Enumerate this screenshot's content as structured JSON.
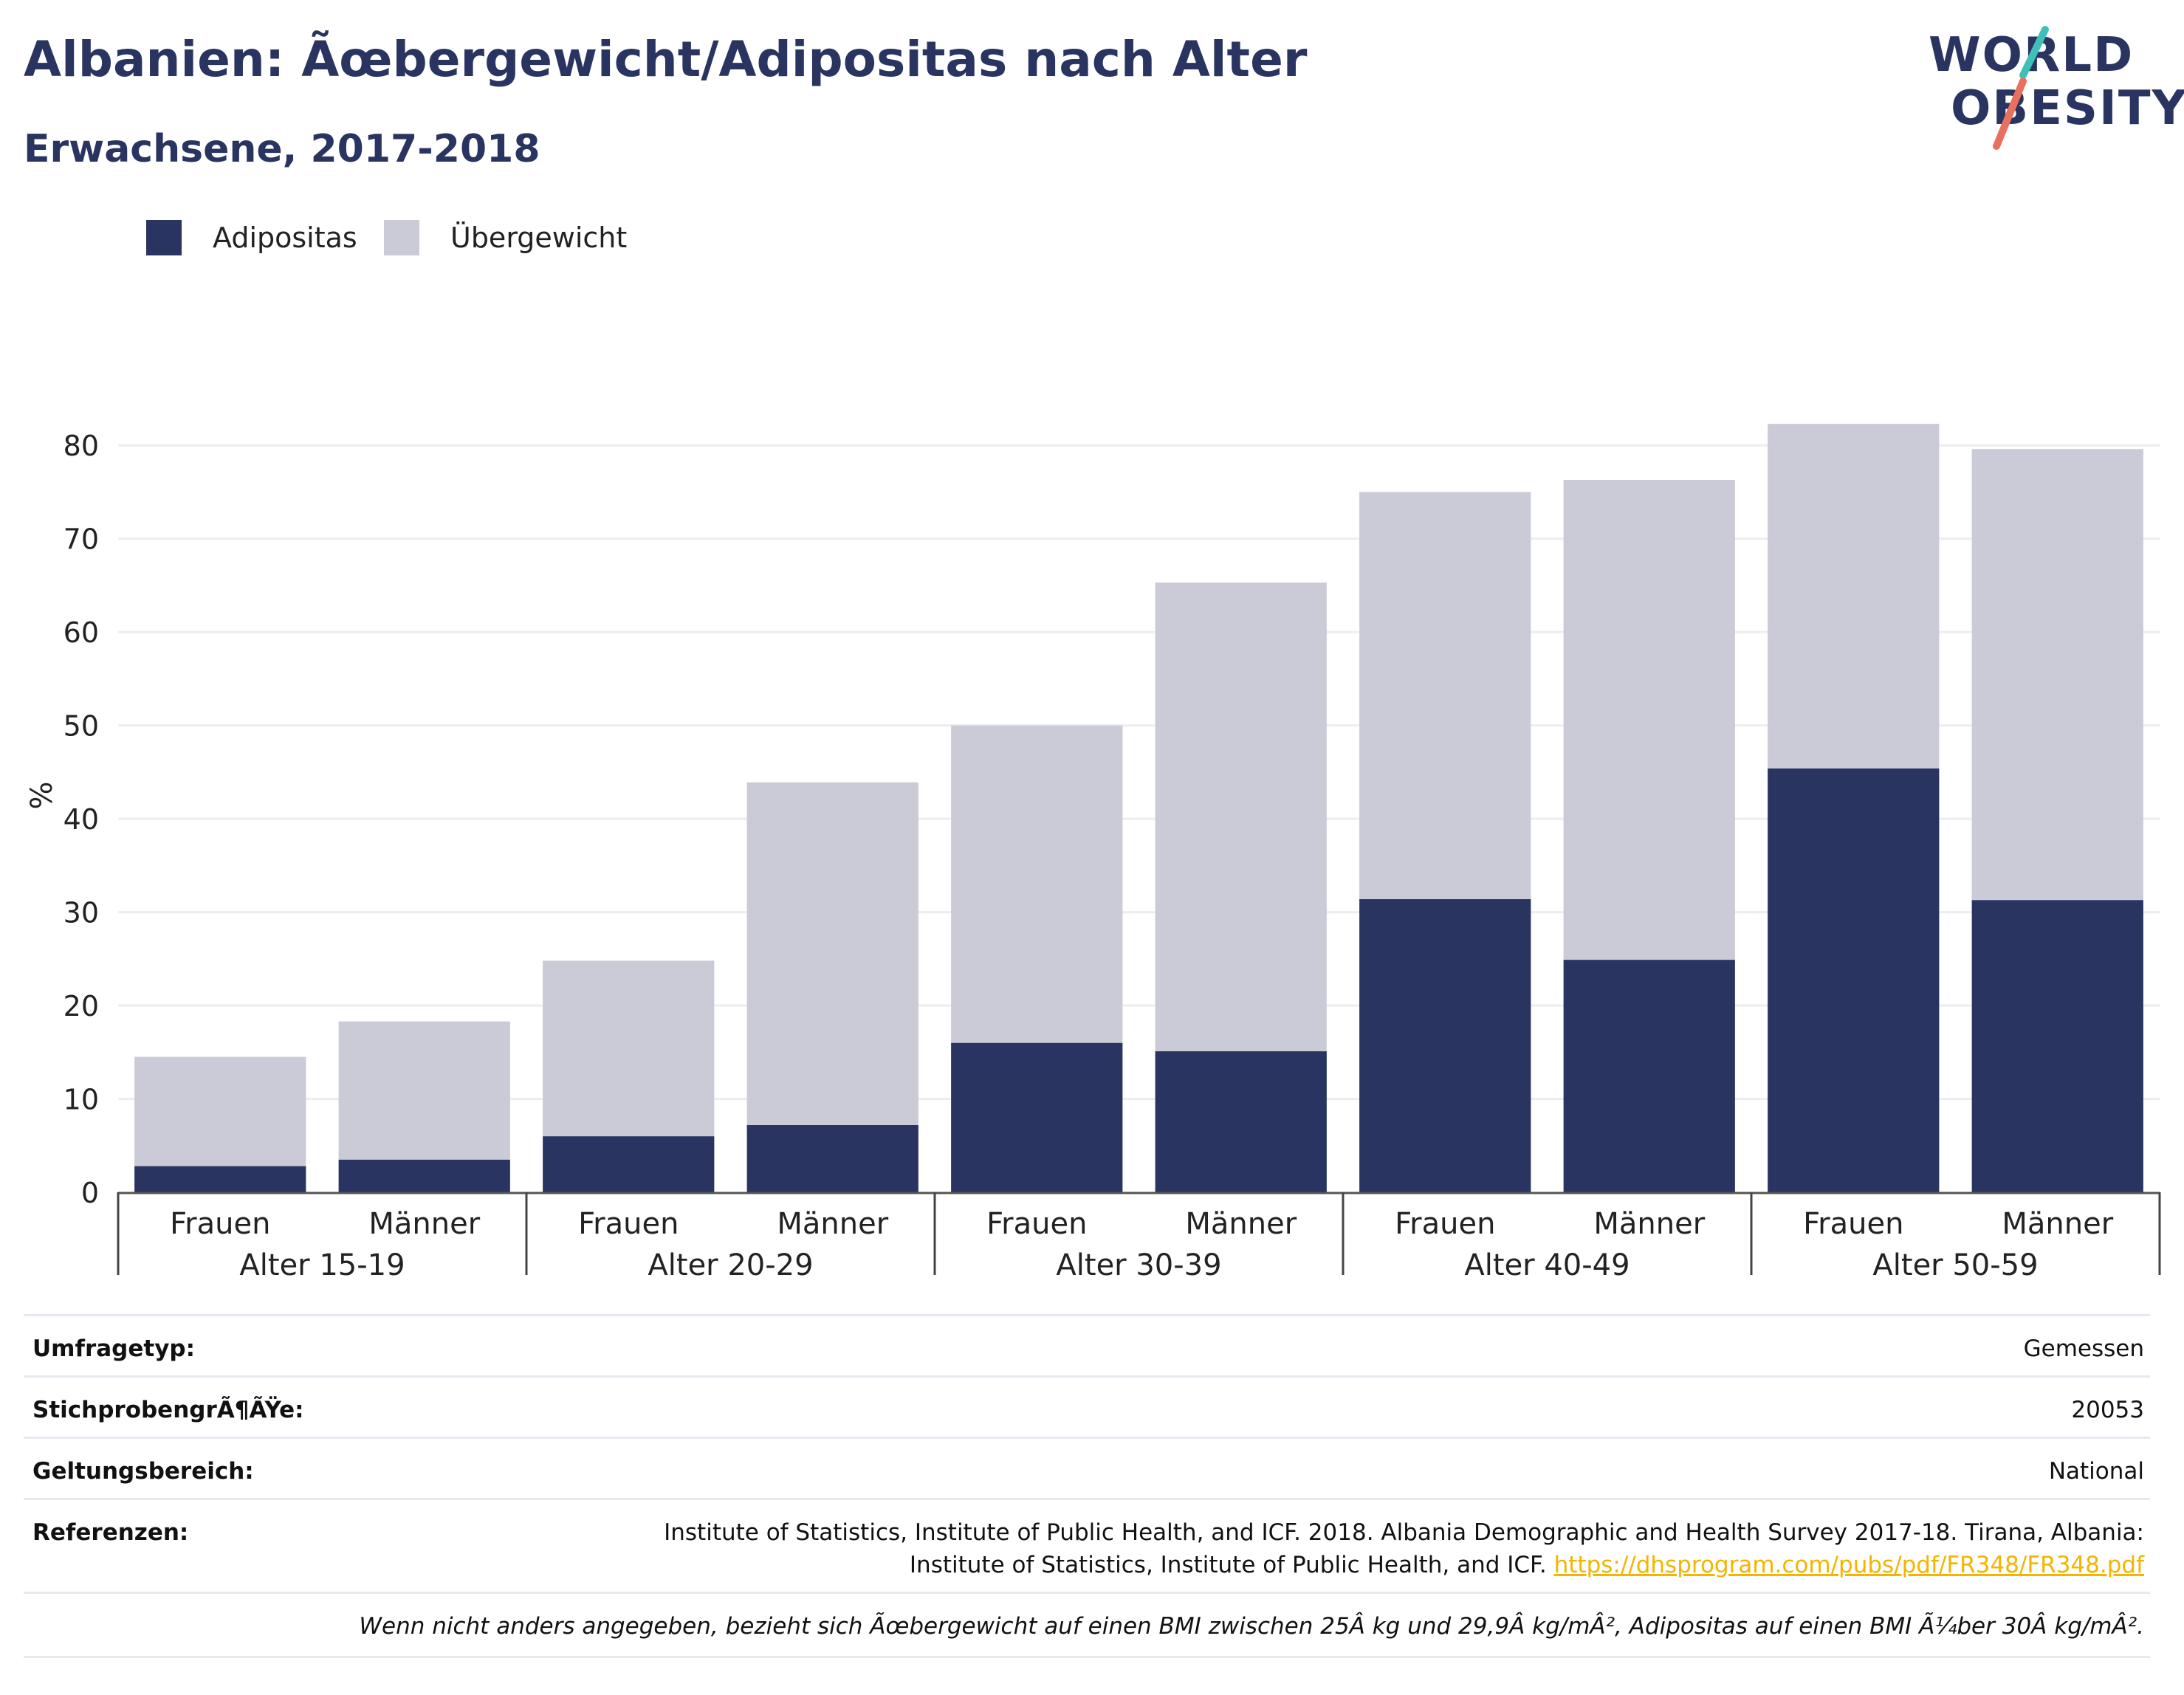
{
  "header": {
    "title": "Albanien: Ãœbergewicht/Adipositas nach Alter",
    "subtitle": "Erwachsene, 2017-2018"
  },
  "logo": {
    "line1": "WORLD",
    "line2": "OBESITY"
  },
  "colors": {
    "adipositas": "#2a3461",
    "uebergewicht": "#cacbd6",
    "title": "#2a3461",
    "logo_teal": "#3fbfb8",
    "logo_coral": "#e8705f",
    "link": "#f4b400",
    "grid": "#ececf2"
  },
  "legend": {
    "items": [
      "Adipositas",
      "Übergewicht"
    ]
  },
  "chart_data": {
    "type": "bar",
    "stacked": true,
    "ylabel": "%",
    "ylim": [
      0,
      85
    ],
    "yticks": [
      0,
      10,
      20,
      30,
      40,
      50,
      60,
      70,
      80
    ],
    "grid": true,
    "legend_position": "top-left",
    "groups": [
      "Alter 15-19",
      "Alter 20-29",
      "Alter 30-39",
      "Alter 40-49",
      "Alter 50-59"
    ],
    "subcategories": [
      "Frauen",
      "Männer"
    ],
    "categories": [
      "Alter 15-19 Frauen",
      "Alter 15-19 Männer",
      "Alter 20-29 Frauen",
      "Alter 20-29 Männer",
      "Alter 30-39 Frauen",
      "Alter 30-39 Männer",
      "Alter 40-49 Frauen",
      "Alter 40-49 Männer",
      "Alter 50-59 Frauen",
      "Alter 50-59 Männer"
    ],
    "series": [
      {
        "name": "Adipositas",
        "values": [
          2.8,
          3.5,
          6.0,
          7.2,
          16.0,
          15.1,
          31.4,
          24.9,
          45.4,
          31.3
        ]
      },
      {
        "name": "Übergewicht",
        "values": [
          11.7,
          14.8,
          18.8,
          36.7,
          34.0,
          50.2,
          43.6,
          51.4,
          36.9,
          48.3
        ]
      }
    ]
  },
  "meta": {
    "survey_type_label": "Umfragetyp:",
    "survey_type_value": "Gemessen",
    "sample_label": "StichprobengrÃ¶ÃŸe:",
    "sample_value": "20053",
    "scope_label": "Geltungsbereich:",
    "scope_value": "National",
    "references_label": "Referenzen:",
    "references_line1": "Institute of Statistics, Institute of Public Health, and ICF. 2018. Albania Demographic and Health Survey 2017-18. Tirana, Albania:",
    "references_line2": "Institute of Statistics, Institute of Public Health, and ICF. ",
    "references_link": "https://dhsprogram.com/pubs/pdf/FR348/FR348.pdf",
    "footnote": "Wenn nicht anders angegeben, bezieht sich Ãœbergewicht auf einen BMI zwischen 25Â kg und 29,9Â kg/mÂ², Adipositas auf einen BMI Ã¼ber 30Â kg/mÂ²."
  }
}
